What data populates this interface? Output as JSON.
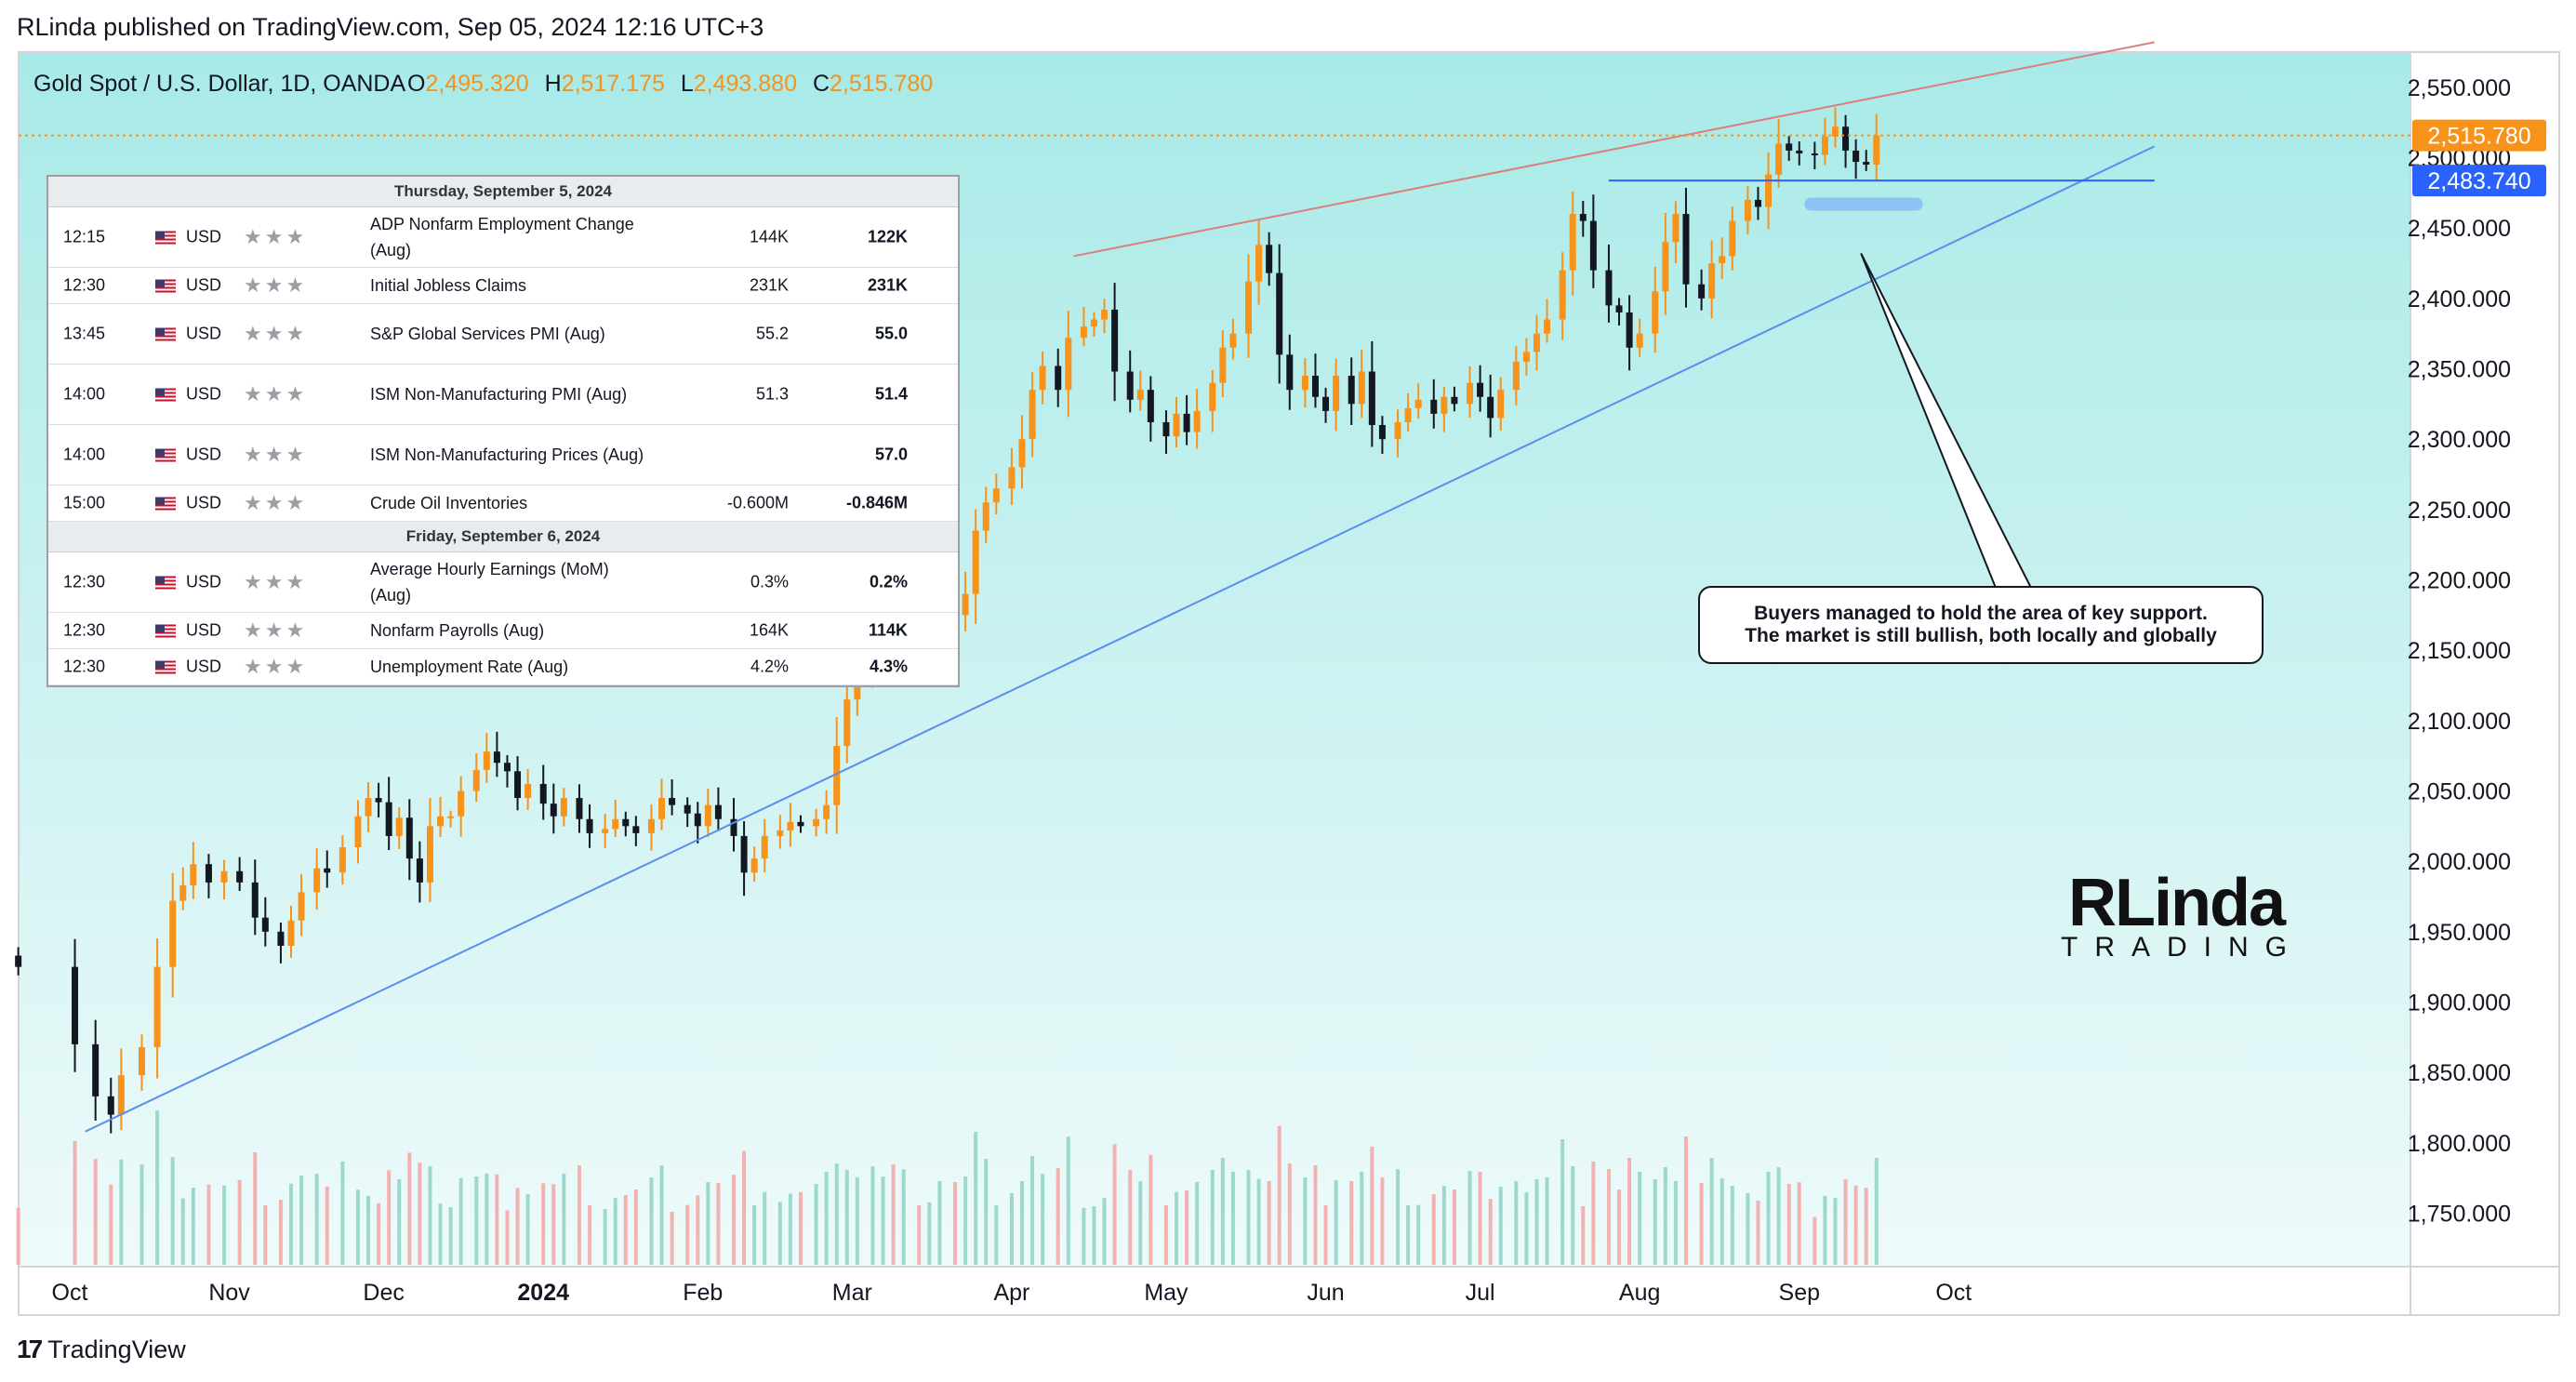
{
  "header": {
    "published": "RLinda published on TradingView.com, Sep 05, 2024 12:16 UTC+3",
    "symbol": "Gold Spot / U.S. Dollar, 1D, OANDA",
    "ohlc": [
      {
        "label": "O",
        "value": "2,495.320"
      },
      {
        "label": "H",
        "value": "2,517.175"
      },
      {
        "label": "L",
        "value": "2,493.880"
      },
      {
        "label": "C",
        "value": "2,515.780"
      }
    ]
  },
  "calendar": {
    "days": [
      {
        "date": "Thursday, September 5, 2024",
        "events": [
          {
            "time": "12:15",
            "currency": "USD",
            "event": "ADP Nonfarm Employment Change (Aug)",
            "forecast": "144K",
            "actual": "122K"
          },
          {
            "time": "12:30",
            "currency": "USD",
            "event": "Initial Jobless Claims",
            "forecast": "231K",
            "actual": "231K"
          },
          {
            "time": "13:45",
            "currency": "USD",
            "event": "S&P Global Services PMI (Aug)",
            "forecast": "55.2",
            "actual": "55.0"
          },
          {
            "time": "14:00",
            "currency": "USD",
            "event": "ISM Non-Manufacturing PMI (Aug)",
            "forecast": "51.3",
            "actual": "51.4"
          },
          {
            "time": "14:00",
            "currency": "USD",
            "event": "ISM Non-Manufacturing Prices (Aug)",
            "forecast": "",
            "actual": "57.0"
          },
          {
            "time": "15:00",
            "currency": "USD",
            "event": "Crude Oil Inventories",
            "forecast": "-0.600M",
            "actual": "-0.846M"
          }
        ]
      },
      {
        "date": "Friday, September 6, 2024",
        "events": [
          {
            "time": "12:30",
            "currency": "USD",
            "event": "Average Hourly Earnings (MoM) (Aug)",
            "forecast": "0.3%",
            "actual": "0.2%"
          },
          {
            "time": "12:30",
            "currency": "USD",
            "event": "Nonfarm Payrolls (Aug)",
            "forecast": "164K",
            "actual": "114K"
          },
          {
            "time": "12:30",
            "currency": "USD",
            "event": "Unemployment Rate (Aug)",
            "forecast": "4.2%",
            "actual": "4.3%"
          }
        ]
      }
    ]
  },
  "annotation": {
    "line1": "Buyers managed to hold the area of key support.",
    "line2": "The market is still bullish, both locally and globally"
  },
  "logo": {
    "big": "RLinda",
    "small": "TRADING"
  },
  "footer": {
    "brand": "TradingView"
  },
  "colors": {
    "bull": "#f7931a",
    "bear": "#131722",
    "vol_up": "#8fd3c3",
    "vol_down": "#f4a6a6",
    "bg_top": "#a8eae7",
    "bg_bottom": "#eefafa",
    "resistance": "#d97f7f",
    "support": "#5b8def",
    "horizontal": "#2962ff",
    "last_price": "#f7931a",
    "level_label": "#2962ff"
  },
  "chart_data": {
    "type": "candlestick",
    "y_axis": {
      "ticks": [
        "2,550.000",
        "2,500.000",
        "2,450.000",
        "2,400.000",
        "2,350.000",
        "2,300.000",
        "2,250.000",
        "2,200.000",
        "2,150.000",
        "2,100.000",
        "2,050.000",
        "2,000.000",
        "1,950.000",
        "1,900.000",
        "1,850.000",
        "1,800.000",
        "1,750.000"
      ],
      "range": [
        1712,
        2575
      ]
    },
    "x_axis": {
      "ticks": [
        {
          "label": "Oct",
          "t": 0
        },
        {
          "label": "Nov",
          "t": 31
        },
        {
          "label": "Dec",
          "t": 61
        },
        {
          "label": "2024",
          "t": 92,
          "bold": true
        },
        {
          "label": "Feb",
          "t": 123
        },
        {
          "label": "Mar",
          "t": 152
        },
        {
          "label": "Apr",
          "t": 183
        },
        {
          "label": "May",
          "t": 213
        },
        {
          "label": "Jun",
          "t": 244
        },
        {
          "label": "Jul",
          "t": 274
        },
        {
          "label": "Aug",
          "t": 305
        },
        {
          "label": "Sep",
          "t": 336
        },
        {
          "label": "Oct",
          "t": 366
        }
      ]
    },
    "price_labels": [
      {
        "value": 2515.78,
        "text": "2,515.780",
        "kind": "last"
      },
      {
        "value": 2483.74,
        "text": "2,483.740",
        "kind": "level"
      }
    ],
    "series": [
      {
        "t": -10,
        "c": 1925
      },
      {
        "t": 1,
        "c": 1870
      },
      {
        "t": 5,
        "c": 1833
      },
      {
        "t": 8,
        "c": 1820
      },
      {
        "t": 10,
        "c": 1848
      },
      {
        "t": 14,
        "c": 1868
      },
      {
        "t": 17,
        "c": 1925
      },
      {
        "t": 20,
        "c": 1972
      },
      {
        "t": 22,
        "c": 1983
      },
      {
        "t": 24,
        "c": 1998
      },
      {
        "t": 27,
        "c": 1985
      },
      {
        "t": 30,
        "c": 1993
      },
      {
        "t": 33,
        "c": 1985
      },
      {
        "t": 36,
        "c": 1960
      },
      {
        "t": 38,
        "c": 1950
      },
      {
        "t": 41,
        "c": 1940
      },
      {
        "t": 43,
        "c": 1958
      },
      {
        "t": 45,
        "c": 1978
      },
      {
        "t": 48,
        "c": 1995
      },
      {
        "t": 50,
        "c": 1992
      },
      {
        "t": 53,
        "c": 2010
      },
      {
        "t": 56,
        "c": 2032
      },
      {
        "t": 58,
        "c": 2045
      },
      {
        "t": 60,
        "c": 2042
      },
      {
        "t": 62,
        "c": 2018
      },
      {
        "t": 64,
        "c": 2031
      },
      {
        "t": 66,
        "c": 2002
      },
      {
        "t": 68,
        "c": 1985
      },
      {
        "t": 70,
        "c": 2025
      },
      {
        "t": 72,
        "c": 2032
      },
      {
        "t": 74,
        "c": 2032
      },
      {
        "t": 76,
        "c": 2050
      },
      {
        "t": 79,
        "c": 2065
      },
      {
        "t": 81,
        "c": 2078
      },
      {
        "t": 83,
        "c": 2070
      },
      {
        "t": 85,
        "c": 2064
      },
      {
        "t": 87,
        "c": 2045
      },
      {
        "t": 89,
        "c": 2055
      },
      {
        "t": 92,
        "c": 2041
      },
      {
        "t": 94,
        "c": 2032
      },
      {
        "t": 96,
        "c": 2045
      },
      {
        "t": 99,
        "c": 2030
      },
      {
        "t": 101,
        "c": 2020
      },
      {
        "t": 104,
        "c": 2023
      },
      {
        "t": 106,
        "c": 2030
      },
      {
        "t": 108,
        "c": 2025
      },
      {
        "t": 110,
        "c": 2020
      },
      {
        "t": 113,
        "c": 2030
      },
      {
        "t": 115,
        "c": 2045
      },
      {
        "t": 117,
        "c": 2040
      },
      {
        "t": 120,
        "c": 2034
      },
      {
        "t": 122,
        "c": 2025
      },
      {
        "t": 124,
        "c": 2040
      },
      {
        "t": 126,
        "c": 2030
      },
      {
        "t": 129,
        "c": 2018
      },
      {
        "t": 131,
        "c": 1992
      },
      {
        "t": 133,
        "c": 2002
      },
      {
        "t": 135,
        "c": 2018
      },
      {
        "t": 138,
        "c": 2022
      },
      {
        "t": 140,
        "c": 2028
      },
      {
        "t": 142,
        "c": 2025
      },
      {
        "t": 145,
        "c": 2030
      },
      {
        "t": 147,
        "c": 2040
      },
      {
        "t": 149,
        "c": 2082
      },
      {
        "t": 151,
        "c": 2115
      },
      {
        "t": 153,
        "c": 2138
      },
      {
        "t": 156,
        "c": 2165
      },
      {
        "t": 158,
        "c": 2180
      },
      {
        "t": 160,
        "c": 2160
      },
      {
        "t": 162,
        "c": 2172
      },
      {
        "t": 165,
        "c": 2162
      },
      {
        "t": 167,
        "c": 2170
      },
      {
        "t": 169,
        "c": 2190
      },
      {
        "t": 172,
        "c": 2175
      },
      {
        "t": 174,
        "c": 2190
      },
      {
        "t": 176,
        "c": 2235
      },
      {
        "t": 178,
        "c": 2255
      },
      {
        "t": 180,
        "c": 2265
      },
      {
        "t": 183,
        "c": 2280
      },
      {
        "t": 185,
        "c": 2300
      },
      {
        "t": 187,
        "c": 2335
      },
      {
        "t": 189,
        "c": 2352
      },
      {
        "t": 192,
        "c": 2335
      },
      {
        "t": 194,
        "c": 2372
      },
      {
        "t": 197,
        "c": 2380
      },
      {
        "t": 199,
        "c": 2385
      },
      {
        "t": 201,
        "c": 2392
      },
      {
        "t": 203,
        "c": 2348
      },
      {
        "t": 206,
        "c": 2328
      },
      {
        "t": 208,
        "c": 2335
      },
      {
        "t": 210,
        "c": 2312
      },
      {
        "t": 213,
        "c": 2302
      },
      {
        "t": 215,
        "c": 2318
      },
      {
        "t": 217,
        "c": 2305
      },
      {
        "t": 219,
        "c": 2320
      },
      {
        "t": 222,
        "c": 2340
      },
      {
        "t": 224,
        "c": 2365
      },
      {
        "t": 226,
        "c": 2375
      },
      {
        "t": 229,
        "c": 2412
      },
      {
        "t": 231,
        "c": 2438
      },
      {
        "t": 233,
        "c": 2418
      },
      {
        "t": 235,
        "c": 2360
      },
      {
        "t": 237,
        "c": 2335
      },
      {
        "t": 240,
        "c": 2345
      },
      {
        "t": 242,
        "c": 2330
      },
      {
        "t": 244,
        "c": 2320
      },
      {
        "t": 246,
        "c": 2345
      },
      {
        "t": 249,
        "c": 2325
      },
      {
        "t": 251,
        "c": 2348
      },
      {
        "t": 253,
        "c": 2310
      },
      {
        "t": 255,
        "c": 2300
      },
      {
        "t": 258,
        "c": 2312
      },
      {
        "t": 260,
        "c": 2322
      },
      {
        "t": 262,
        "c": 2328
      },
      {
        "t": 265,
        "c": 2318
      },
      {
        "t": 267,
        "c": 2330
      },
      {
        "t": 269,
        "c": 2325
      },
      {
        "t": 272,
        "c": 2340
      },
      {
        "t": 274,
        "c": 2330
      },
      {
        "t": 276,
        "c": 2315
      },
      {
        "t": 278,
        "c": 2335
      },
      {
        "t": 281,
        "c": 2355
      },
      {
        "t": 283,
        "c": 2362
      },
      {
        "t": 285,
        "c": 2375
      },
      {
        "t": 287,
        "c": 2385
      },
      {
        "t": 290,
        "c": 2420
      },
      {
        "t": 292,
        "c": 2460
      },
      {
        "t": 294,
        "c": 2455
      },
      {
        "t": 296,
        "c": 2420
      },
      {
        "t": 299,
        "c": 2395
      },
      {
        "t": 301,
        "c": 2390
      },
      {
        "t": 303,
        "c": 2365
      },
      {
        "t": 305,
        "c": 2375
      },
      {
        "t": 308,
        "c": 2405
      },
      {
        "t": 310,
        "c": 2440
      },
      {
        "t": 312,
        "c": 2460
      },
      {
        "t": 314,
        "c": 2410
      },
      {
        "t": 317,
        "c": 2400
      },
      {
        "t": 319,
        "c": 2425
      },
      {
        "t": 321,
        "c": 2430
      },
      {
        "t": 323,
        "c": 2455
      },
      {
        "t": 326,
        "c": 2470
      },
      {
        "t": 328,
        "c": 2465
      },
      {
        "t": 330,
        "c": 2488
      },
      {
        "t": 332,
        "c": 2510
      },
      {
        "t": 334,
        "c": 2505
      },
      {
        "t": 336,
        "c": 2503
      },
      {
        "t": 339,
        "c": 2502
      },
      {
        "t": 341,
        "c": 2515
      },
      {
        "t": 343,
        "c": 2522
      },
      {
        "t": 345,
        "c": 2505
      },
      {
        "t": 347,
        "c": 2497
      },
      {
        "t": 349,
        "c": 2495
      },
      {
        "t": 351,
        "c": 2515.78
      }
    ],
    "lines": [
      {
        "kind": "resistance",
        "from": {
          "t": 195,
          "v": 2430
        },
        "to": {
          "t": 405,
          "v": 2582
        }
      },
      {
        "kind": "support",
        "from": {
          "t": 3,
          "v": 1808
        },
        "to": {
          "t": 405,
          "v": 2508
        }
      },
      {
        "kind": "horizontal",
        "from": {
          "t": 299,
          "v": 2483.74
        },
        "to": {
          "t": 405,
          "v": 2483.74
        }
      },
      {
        "kind": "last_price",
        "value": 2515.78
      }
    ],
    "support_zone": {
      "t_from": 337,
      "t_to": 360,
      "v": 2467
    },
    "callout_anchor": {
      "t": 348,
      "v": 2432
    }
  }
}
